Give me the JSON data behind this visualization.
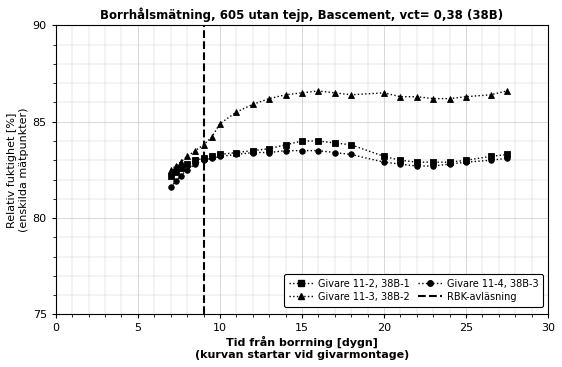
{
  "title": "Borrhålsmätning, 605 utan tejp, Bascement, vct= 0,38 (38B)",
  "xlabel": "Tid från borrning [dygn]",
  "xlabel2": "(kurvan startar vid givarmontage)",
  "ylabel": "Relativ fuktighet [%]",
  "ylabel2": "(enskilda mätpunkter)",
  "xlim": [
    0,
    30
  ],
  "ylim": [
    75,
    90
  ],
  "xticks": [
    0,
    5,
    10,
    15,
    20,
    25,
    30
  ],
  "yticks": [
    75,
    80,
    85,
    90
  ],
  "rbk_x": 9.0,
  "series": [
    {
      "label": "Givare 11-2, 38B-1",
      "marker": "s",
      "x": [
        7.0,
        7.3,
        7.6,
        8.0,
        8.5,
        9.0,
        9.5,
        10.0,
        11.0,
        12.0,
        13.0,
        14.0,
        15.0,
        16.0,
        17.0,
        18.0,
        20.0,
        21.0,
        22.0,
        23.0,
        24.0,
        25.0,
        26.5,
        27.5
      ],
      "y": [
        82.2,
        82.4,
        82.6,
        82.8,
        83.0,
        83.1,
        83.2,
        83.3,
        83.4,
        83.5,
        83.6,
        83.8,
        84.0,
        84.0,
        83.9,
        83.8,
        83.2,
        83.0,
        82.9,
        82.9,
        82.9,
        83.0,
        83.2,
        83.3
      ]
    },
    {
      "label": "Givare 11-3, 38B-2",
      "marker": "^",
      "x": [
        7.0,
        7.3,
        7.6,
        8.0,
        8.5,
        9.0,
        9.5,
        10.0,
        11.0,
        12.0,
        13.0,
        14.0,
        15.0,
        16.0,
        17.0,
        18.0,
        20.0,
        21.0,
        22.0,
        23.0,
        24.0,
        25.0,
        26.5,
        27.5
      ],
      "y": [
        82.5,
        82.7,
        82.9,
        83.2,
        83.5,
        83.8,
        84.2,
        84.9,
        85.5,
        85.9,
        86.2,
        86.4,
        86.5,
        86.6,
        86.5,
        86.4,
        86.5,
        86.3,
        86.3,
        86.2,
        86.2,
        86.3,
        86.4,
        86.6
      ]
    },
    {
      "label": "Givare 11-4, 38B-3",
      "marker": "o",
      "x": [
        7.0,
        7.3,
        7.6,
        8.0,
        8.5,
        9.0,
        9.5,
        10.0,
        11.0,
        12.0,
        13.0,
        14.0,
        15.0,
        16.0,
        17.0,
        18.0,
        20.0,
        21.0,
        22.0,
        23.0,
        24.0,
        25.0,
        26.5,
        27.5
      ],
      "y": [
        81.6,
        81.9,
        82.2,
        82.5,
        82.8,
        83.0,
        83.1,
        83.2,
        83.3,
        83.4,
        83.4,
        83.5,
        83.5,
        83.5,
        83.4,
        83.3,
        82.9,
        82.8,
        82.7,
        82.7,
        82.8,
        82.9,
        83.0,
        83.1
      ]
    }
  ],
  "color": "black",
  "background": "#ffffff",
  "grid_color": "#c8c8c8"
}
